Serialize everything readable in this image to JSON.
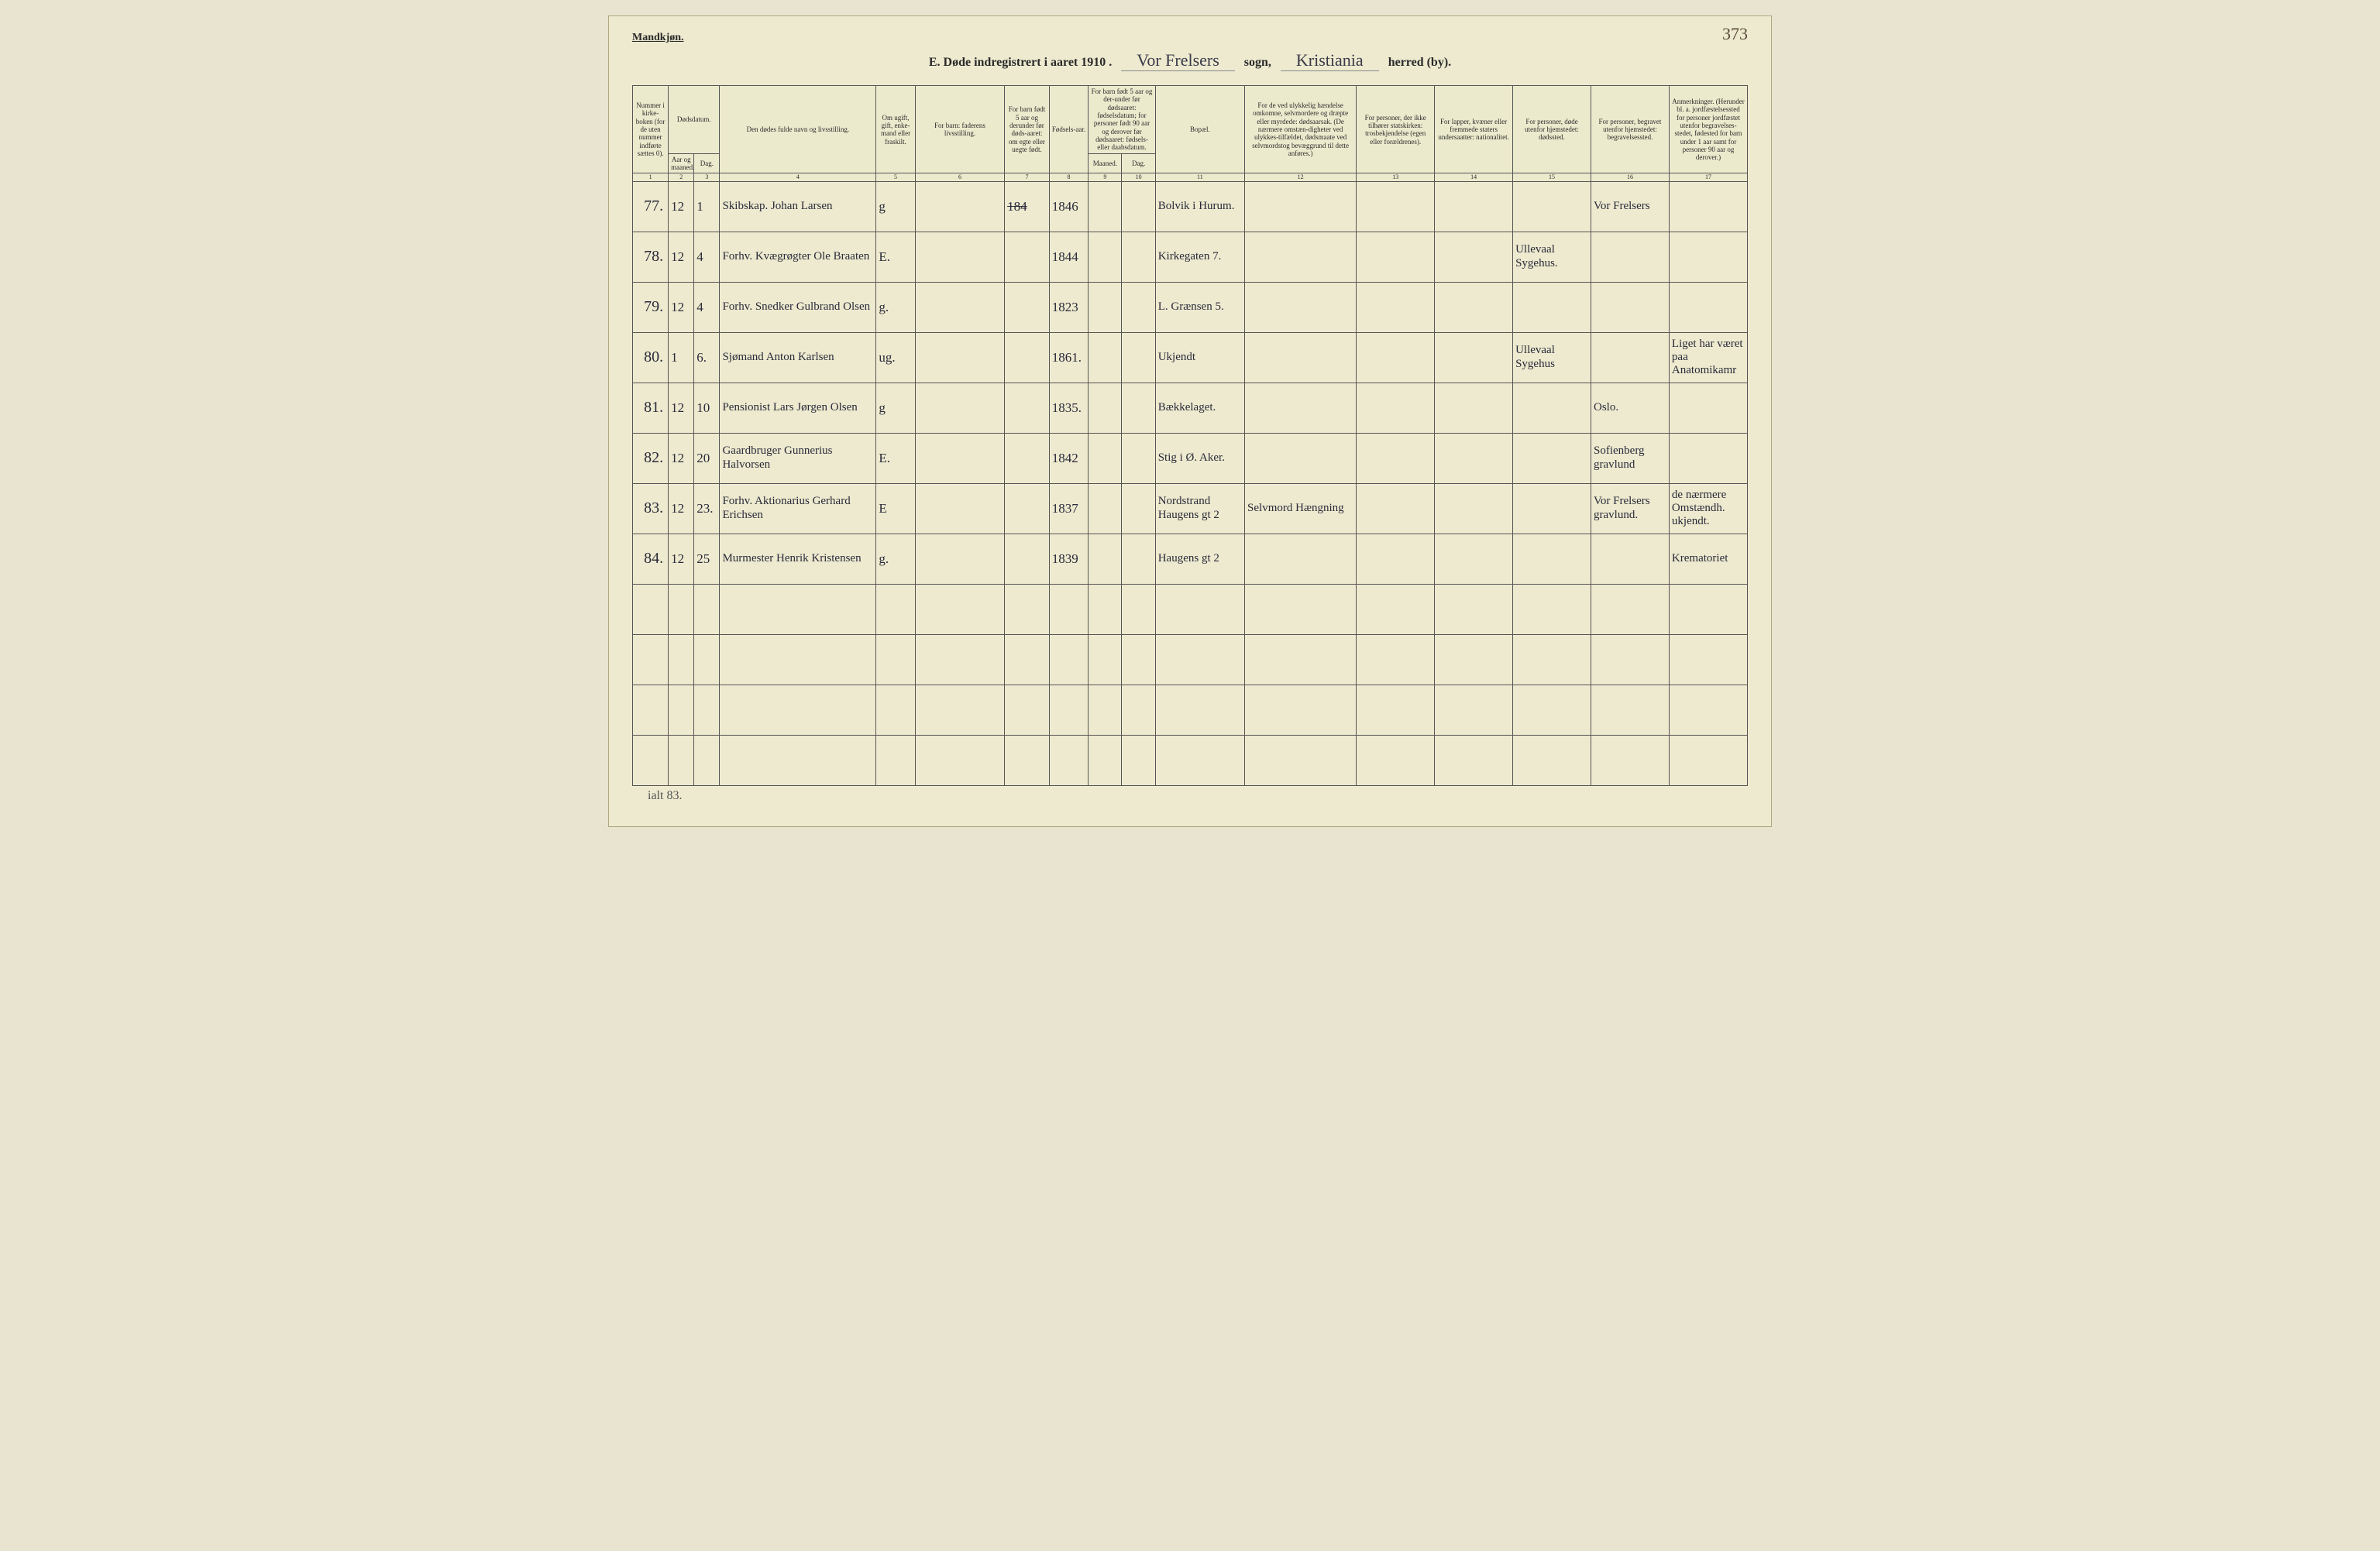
{
  "page_number": "373",
  "gender_label": "Mandkjøn.",
  "title": {
    "prefix": "E.  Døde indregistrert i aaret 191",
    "year_suffix": "0 .",
    "parish": "Vor Frelsers",
    "label_sogn": "sogn,",
    "district": "Kristiania",
    "label_herred": "herred (by)."
  },
  "headers": {
    "c1": "Nummer i kirke-boken (for de uten nummer indførte sættes 0).",
    "c2_group": "Dødsdatum.",
    "c2": "Aar og maaned.",
    "c3": "Dag.",
    "c4": "Den dødes fulde navn og livsstilling.",
    "c5": "Om ugift, gift, enke-mand eller fraskilt.",
    "c6": "For barn: faderens livsstilling.",
    "c7": "For barn født 5 aar og derunder før døds-aaret: om egte eller uegte født.",
    "c8": "Fødsels-aar.",
    "c9_group": "For barn født 5 aar og der-under før dødsaaret: fødselsdatum; for personer født 90 aar og derover før dødsaaret: fødsels- eller daabsdatum.",
    "c9": "Maaned.",
    "c10": "Dag.",
    "c11": "Bopæl.",
    "c12": "For de ved ulykkelig hændelse omkomne, selvmordere og dræpte eller myrdede: dødsaarsak. (De nærmere omstæn-digheter ved ulykkes-tilfældet, dødsmaate ved selvmordstog bevæggrund til dette anføres.)",
    "c13": "For personer, der ikke tilhører statskirken: trosbekjendelse (egen eller forældrenes).",
    "c14": "For lapper, kvæner eller fremmede staters undersaatter: nationalitet.",
    "c15": "For personer, døde utenfor hjemstedet: dødssted.",
    "c16": "For personer, begravet utenfor hjemstedet: begravelsessted.",
    "c17": "Anmerkninger. (Herunder bl. a. jordfæstelsessted for personer jordfæstet utenfor begravelses-stedet, fødested for barn under 1 aar samt for personer 90 aar og derover.)"
  },
  "colnums": [
    "1",
    "2",
    "3",
    "4",
    "5",
    "6",
    "7",
    "8",
    "9",
    "10",
    "11",
    "12",
    "13",
    "14",
    "15",
    "16",
    "17"
  ],
  "rows": [
    {
      "n": "77.",
      "m": "12",
      "d": "1",
      "name": "Skibskap. Johan Larsen",
      "stat": "g",
      "far": "",
      "egte": "184",
      "aar": "1846",
      "md": "",
      "dg": "",
      "bo": "Bolvik i Hurum.",
      "cause": "",
      "tro": "",
      "nat": "",
      "dsted": "",
      "bsted": "Vor Frelsers",
      "anm": ""
    },
    {
      "n": "78.",
      "m": "12",
      "d": "4",
      "name": "Forhv. Kvægrøgter Ole Braaten",
      "stat": "E.",
      "far": "",
      "egte": "",
      "aar": "1844",
      "md": "",
      "dg": "",
      "bo": "Kirkegaten 7.",
      "cause": "",
      "tro": "",
      "nat": "",
      "dsted": "Ullevaal Sygehus.",
      "bsted": "",
      "anm": ""
    },
    {
      "n": "79.",
      "m": "12",
      "d": "4",
      "name": "Forhv. Snedker Gulbrand Olsen",
      "stat": "g.",
      "far": "",
      "egte": "",
      "aar": "1823",
      "md": "",
      "dg": "",
      "bo": "L. Grænsen 5.",
      "cause": "",
      "tro": "",
      "nat": "",
      "dsted": "",
      "bsted": "",
      "anm": ""
    },
    {
      "n": "80.",
      "m": "1",
      "d": "6.",
      "name": "Sjømand Anton Karlsen",
      "stat": "ug.",
      "far": "",
      "egte": "",
      "aar": "1861.",
      "md": "",
      "dg": "",
      "bo": "Ukjendt",
      "cause": "",
      "tro": "",
      "nat": "",
      "dsted": "Ullevaal Sygehus",
      "bsted": "",
      "anm": "Liget har været paa Anatomikamr"
    },
    {
      "n": "81.",
      "m": "12",
      "d": "10",
      "name": "Pensionist Lars Jørgen Olsen",
      "stat": "g",
      "far": "",
      "egte": "",
      "aar": "1835.",
      "md": "",
      "dg": "",
      "bo": "Bækkelaget.",
      "cause": "",
      "tro": "",
      "nat": "",
      "dsted": "",
      "bsted": "Oslo.",
      "anm": ""
    },
    {
      "n": "82.",
      "m": "12",
      "d": "20",
      "name": "Gaardbruger Gunnerius Halvorsen",
      "stat": "E.",
      "far": "",
      "egte": "",
      "aar": "1842",
      "md": "",
      "dg": "",
      "bo": "Stig i Ø. Aker.",
      "cause": "",
      "tro": "",
      "nat": "",
      "dsted": "",
      "bsted": "Sofienberg gravlund",
      "anm": ""
    },
    {
      "n": "83.",
      "m": "12",
      "d": "23.",
      "name": "Forhv. Aktionarius Gerhard Erichsen",
      "stat": "E",
      "far": "",
      "egte": "",
      "aar": "1837",
      "md": "",
      "dg": "",
      "bo": "Nordstrand Haugens gt 2",
      "cause": "Selvmord Hængning",
      "tro": "",
      "nat": "",
      "dsted": "",
      "bsted": "Vor Frelsers gravlund.",
      "anm": "de nærmere Omstændh. ukjendt."
    },
    {
      "n": "84.",
      "m": "12",
      "d": "25",
      "name": "Murmester Henrik Kristensen",
      "stat": "g.",
      "far": "",
      "egte": "",
      "aar": "1839",
      "md": "",
      "dg": "",
      "bo": "Haugens gt 2",
      "cause": "",
      "tro": "",
      "nat": "",
      "dsted": "",
      "bsted": "",
      "anm": "Krematoriet"
    }
  ],
  "blank_rows": 4,
  "footnote": "ialt 83."
}
